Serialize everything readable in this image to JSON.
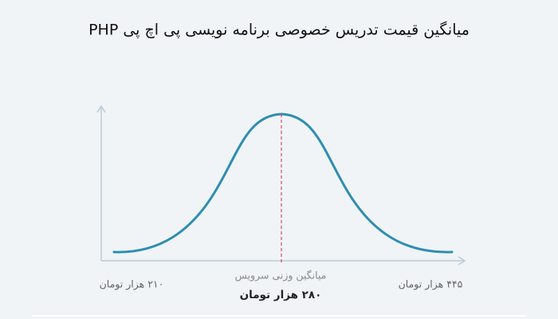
{
  "title": "میانگین قیمت تدریس خصوصی برنامه نویسی پی اچ پی PHP",
  "labels": {
    "min": "۲۱۰ هزار تومان",
    "max": "۴۴۵ هزار تومان",
    "mean_caption": "میانگین وزنی سرویس",
    "mean": "۲۸۰ هزار تومان"
  }
}
